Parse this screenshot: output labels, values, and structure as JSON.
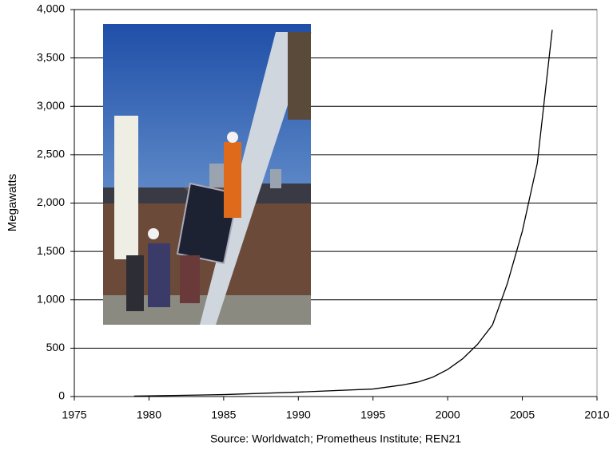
{
  "chart_data": {
    "type": "line",
    "y_label": "Megawatts",
    "source": "Source: Worldwatch; Prometheus Institute; REN21",
    "x": [
      1979,
      1980,
      1985,
      1990,
      1995,
      1997,
      1998,
      1999,
      2000,
      2001,
      2002,
      2003,
      2004,
      2005,
      2006,
      2007
    ],
    "series": [
      {
        "name": "Megawatts",
        "color": "#000000",
        "values": [
          5,
          7,
          20,
          46,
          78,
          120,
          150,
          200,
          280,
          390,
          540,
          740,
          1170,
          1710,
          2410,
          3790
        ]
      }
    ],
    "xlim": [
      1975,
      2010
    ],
    "xticks": [
      1975,
      1980,
      1985,
      1990,
      1995,
      2000,
      2005,
      2010
    ],
    "ylim": [
      0,
      4000
    ],
    "yticks": [
      0,
      500,
      {
        "value": 1000,
        "label": "1,000"
      },
      {
        "value": 1500,
        "label": "1,500"
      },
      {
        "value": 2000,
        "label": "2,000"
      },
      {
        "value": 2500,
        "label": "2,500"
      },
      {
        "value": 3000,
        "label": "3,000"
      },
      {
        "value": 3500,
        "label": "3,500"
      },
      {
        "value": 4000,
        "label": "4,000"
      }
    ],
    "grid": true
  }
}
